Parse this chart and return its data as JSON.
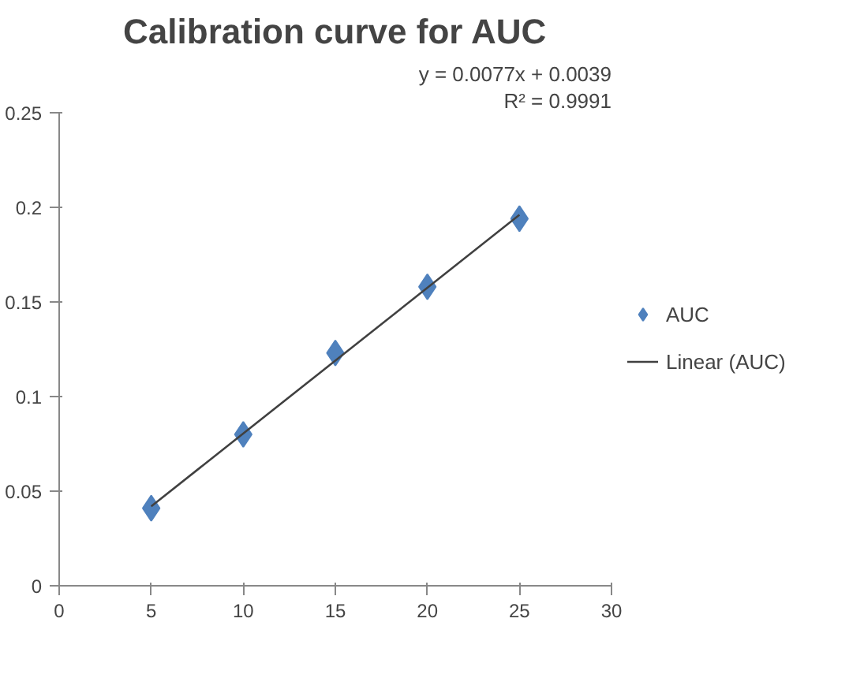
{
  "chart_data": {
    "type": "scatter",
    "title": "Calibration curve for AUC",
    "x": [
      5,
      10,
      15,
      20,
      25
    ],
    "series": [
      {
        "name": "AUC",
        "color": "#4f81bd",
        "values": [
          0.041,
          0.08,
          0.123,
          0.158,
          0.194
        ],
        "marker": "diamond"
      },
      {
        "name": "Linear (AUC)",
        "type": "line",
        "color": "#404040",
        "x": [
          5,
          25
        ],
        "values": [
          0.042,
          0.196
        ],
        "marker": "none"
      }
    ],
    "xlim": [
      0,
      30
    ],
    "xticks": [
      0,
      5,
      10,
      15,
      20,
      25,
      30
    ],
    "ylim": [
      0,
      0.25
    ],
    "yticks": [
      0,
      0.05,
      0.1,
      0.15,
      0.2,
      0.25
    ],
    "grid": false,
    "legend": "right",
    "annotations": [
      "y = 0.0077x + 0.0039",
      "R² = 0.9991"
    ]
  }
}
